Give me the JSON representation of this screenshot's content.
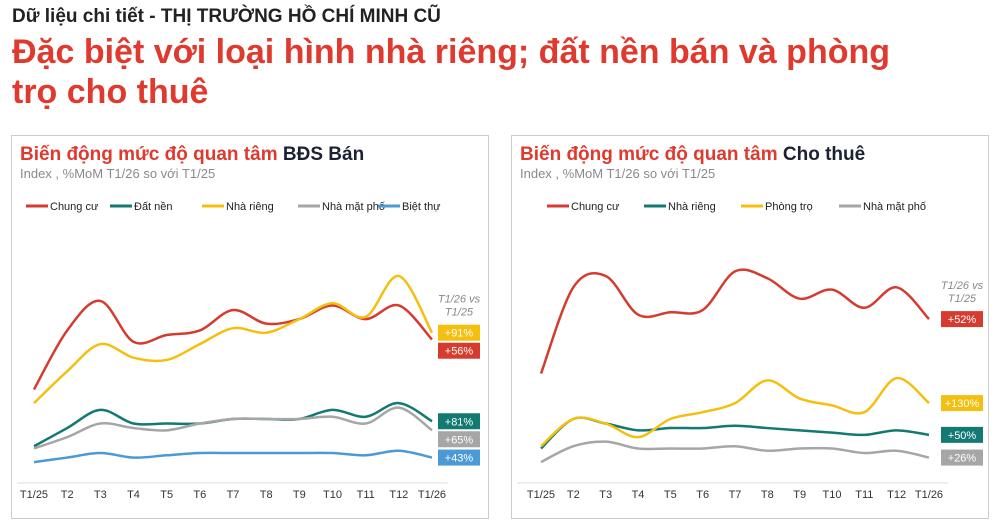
{
  "header": {
    "supertitle": "Dữ liệu chi tiết - THỊ TRƯỜNG HỒ CHÍ MINH CŨ",
    "headline": "Đặc biệt với loại hình nhà riêng; đất nền bán và phòng trọ cho thuê"
  },
  "chart_data": [
    {
      "type": "line",
      "title_prefix": "Biến động mức độ quan tâm",
      "title_emph": "BĐS Bán",
      "subtitle": "Index , %MoM T1/26 so với T1/25",
      "compare_label": "T1/26 vs T1/25",
      "legend": "top",
      "grid": false,
      "categories": [
        "T1/25",
        "T2",
        "T3",
        "T4",
        "T5",
        "T6",
        "T7",
        "T8",
        "T9",
        "T10",
        "T11",
        "T12",
        "T1/26"
      ],
      "ylim": [
        0,
        100
      ],
      "series": [
        {
          "name": "Chung cư",
          "color": "#d63b2f",
          "values": [
            39,
            65,
            78,
            60,
            63,
            65,
            74,
            68,
            70,
            76,
            70,
            76,
            61
          ],
          "change": "+56%"
        },
        {
          "name": "Đất nền",
          "color": "#127a72",
          "values": [
            14,
            22,
            30,
            24,
            24,
            24,
            26,
            26,
            26,
            30,
            27,
            33,
            25
          ],
          "change": "+81%"
        },
        {
          "name": "Nhà riêng",
          "color": "#f5bf0f",
          "values": [
            33,
            47,
            59,
            53,
            52,
            59,
            66,
            64,
            70,
            77,
            71,
            89,
            64
          ],
          "change": "+91%"
        },
        {
          "name": "Nhà mặt phố",
          "color": "#a6a6a6",
          "values": [
            13,
            18,
            24,
            22,
            21,
            24,
            26,
            26,
            26,
            27,
            24,
            31,
            21
          ],
          "change": "+65%"
        },
        {
          "name": "Biệt thự",
          "color": "#4b9ad6",
          "values": [
            7,
            9,
            11,
            9,
            10,
            11,
            11,
            11,
            11,
            11,
            10,
            12,
            9
          ],
          "change": "+43%"
        }
      ]
    },
    {
      "type": "line",
      "title_prefix": "Biến động mức độ quan tâm",
      "title_emph": "Cho thuê",
      "subtitle": "Index , %MoM T1/26 so với T1/25",
      "compare_label": "T1/26 vs T1/25",
      "legend": "top",
      "grid": false,
      "categories": [
        "T1/25",
        "T2",
        "T3",
        "T4",
        "T5",
        "T6",
        "T7",
        "T8",
        "T9",
        "T10",
        "T11",
        "T12",
        "T1/26"
      ],
      "ylim": [
        0,
        100
      ],
      "series": [
        {
          "name": "Chung cư",
          "color": "#d63b2f",
          "values": [
            46,
            84,
            89,
            72,
            73,
            74,
            91,
            88,
            79,
            83,
            75,
            84,
            70
          ],
          "change": "+52%"
        },
        {
          "name": "Nhà riêng",
          "color": "#127a72",
          "values": [
            13,
            26,
            24,
            21,
            22,
            22,
            23,
            22,
            21,
            20,
            19,
            21,
            19
          ],
          "change": "+50%"
        },
        {
          "name": "Phòng trọ",
          "color": "#f5bf0f",
          "values": [
            14,
            26,
            24,
            18,
            26,
            29,
            33,
            43,
            35,
            32,
            29,
            44,
            33
          ],
          "change": "+130%"
        },
        {
          "name": "Nhà mặt phố",
          "color": "#a6a6a6",
          "values": [
            7,
            14,
            16,
            13,
            13,
            13,
            14,
            12,
            13,
            13,
            11,
            12,
            9
          ],
          "change": "+26%"
        }
      ]
    }
  ]
}
